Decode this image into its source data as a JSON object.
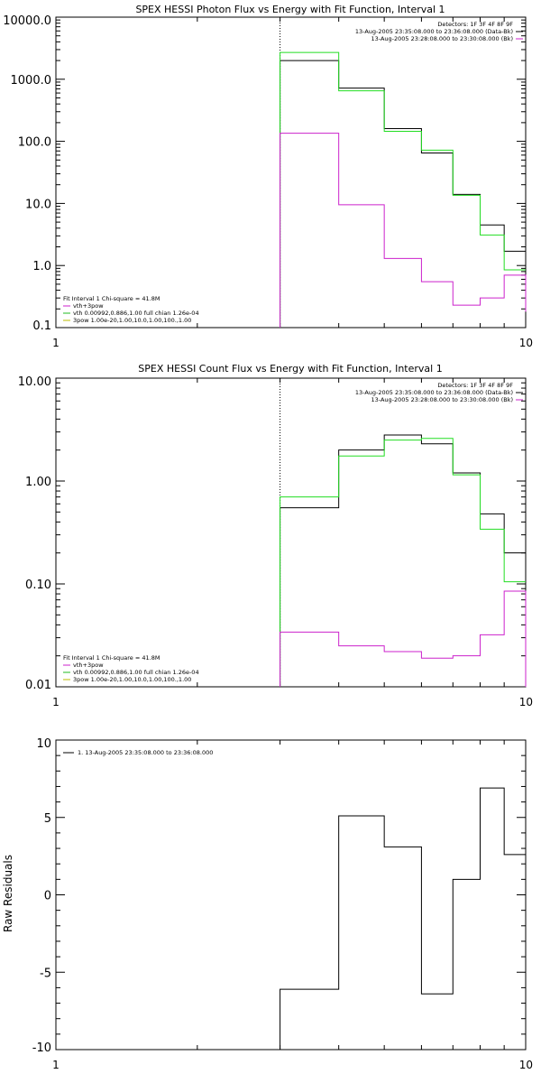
{
  "chart_data": [
    {
      "type": "line",
      "title": "SPEX HESSI Photon Flux vs Energy with Fit Function, Interval 1",
      "xlabel": "",
      "ylabel": "",
      "xscale": "log",
      "yscale": "log",
      "xlim": [
        1,
        10
      ],
      "ylim": [
        0.1,
        10000
      ],
      "xticks": [
        "1",
        "10"
      ],
      "yticks": [
        "0.1",
        "1.0",
        "10.0",
        "100.0",
        "1000.0",
        "10000.0"
      ],
      "vline_x": 3,
      "header": {
        "lines": [
          "Detectors: 1F 3F 4F 8F 9F",
          "13-Aug-2005 23:35:08.000 to 23:36:08.000 (Data-Bk)",
          "13-Aug-2005 23:28:08.000 to 23:30:08.000 (Bk)"
        ],
        "colors": [
          "#000000",
          "#000000",
          "#cc22cc"
        ]
      },
      "legend": {
        "position": "bottom-left",
        "lines": [
          "Fit Interval 1   Chi-square = 41.8M",
          "vth+3pow",
          "vth 0.00992,0.886,1.00  full chian 1.26e-04",
          "3pow 1.00e-20,1.00,10.0,1.00,100.,1.00"
        ],
        "colors": [
          "#000000",
          "#cc22cc",
          "#22bb22",
          "#bbbb00"
        ]
      },
      "edges": [
        3,
        4,
        5,
        6,
        7,
        8,
        9,
        10
      ],
      "series": [
        {
          "values": [
            2000,
            720,
            160,
            65,
            14,
            4.5,
            1.7
          ],
          "color": "#000000"
        },
        {
          "values": [
            2700,
            650,
            145,
            72,
            13.5,
            3.1,
            0.85
          ],
          "color": "#22dd22"
        },
        {
          "values": [
            135,
            9.5,
            1.3,
            0.55,
            0.23,
            0.3,
            0.7
          ],
          "color": "#cc22cc",
          "tail": 0.18
        }
      ]
    },
    {
      "type": "line",
      "title": "SPEX HESSI Count Flux vs Energy with Fit Function, Interval 1",
      "xlabel": "",
      "ylabel": "",
      "xscale": "log",
      "yscale": "log",
      "xlim": [
        1,
        10
      ],
      "ylim": [
        0.01,
        10
      ],
      "xticks": [
        "1",
        "10"
      ],
      "yticks": [
        "0.01",
        "0.10",
        "1.00",
        "10.00"
      ],
      "vline_x": 3,
      "header": {
        "lines": [
          "Detectors: 1F 3F 4F 8F 9F",
          "13-Aug-2005 23:35:08.000 to 23:36:08.000 (Data-Bk)",
          "13-Aug-2005 23:28:08.000 to 23:30:08.000 (Bk)"
        ],
        "colors": [
          "#000000",
          "#000000",
          "#cc22cc"
        ]
      },
      "legend": {
        "position": "bottom-left",
        "lines": [
          "Fit Interval 1   Chi-square = 41.8M",
          "vth+3pow",
          "vth 0.00992,0.886,1.00  full chian 1.26e-04",
          "3pow 1.00e-20,1.00,10.0,1.00,100.,1.00"
        ],
        "colors": [
          "#000000",
          "#cc22cc",
          "#22bb22",
          "#bbbb00"
        ]
      },
      "edges": [
        3,
        4,
        5,
        6,
        7,
        8,
        9,
        10
      ],
      "series": [
        {
          "values": [
            0.55,
            2.0,
            2.8,
            2.3,
            1.2,
            0.48,
            0.2
          ],
          "color": "#000000"
        },
        {
          "values": [
            0.7,
            1.75,
            2.5,
            2.6,
            1.15,
            0.34,
            0.105
          ],
          "color": "#22dd22"
        },
        {
          "values": [
            0.034,
            0.025,
            0.022,
            0.019,
            0.02,
            0.032,
            0.085
          ],
          "color": "#cc22cc",
          "tail": 0.01
        }
      ]
    },
    {
      "type": "line",
      "title": "",
      "xlabel": "",
      "ylabel": "Raw Residuals",
      "xscale": "log",
      "yscale": "linear",
      "xlim": [
        1,
        10
      ],
      "ylim": [
        -10,
        10
      ],
      "xticks": [
        "1",
        "10"
      ],
      "yticks": [
        "-10",
        "-5",
        "0",
        "5",
        "10"
      ],
      "legend": {
        "position": "top-left",
        "lines": [
          "1. 13-Aug-2005 23:35:08.000 to 23:36:08.000"
        ],
        "colors": [
          "#000000"
        ]
      },
      "edges": [
        3,
        4,
        5,
        6,
        7,
        8,
        9,
        10
      ],
      "series": [
        {
          "values": [
            -6.1,
            5.1,
            3.1,
            -6.4,
            1.0,
            6.9,
            2.6
          ],
          "color": "#000000"
        }
      ]
    }
  ]
}
